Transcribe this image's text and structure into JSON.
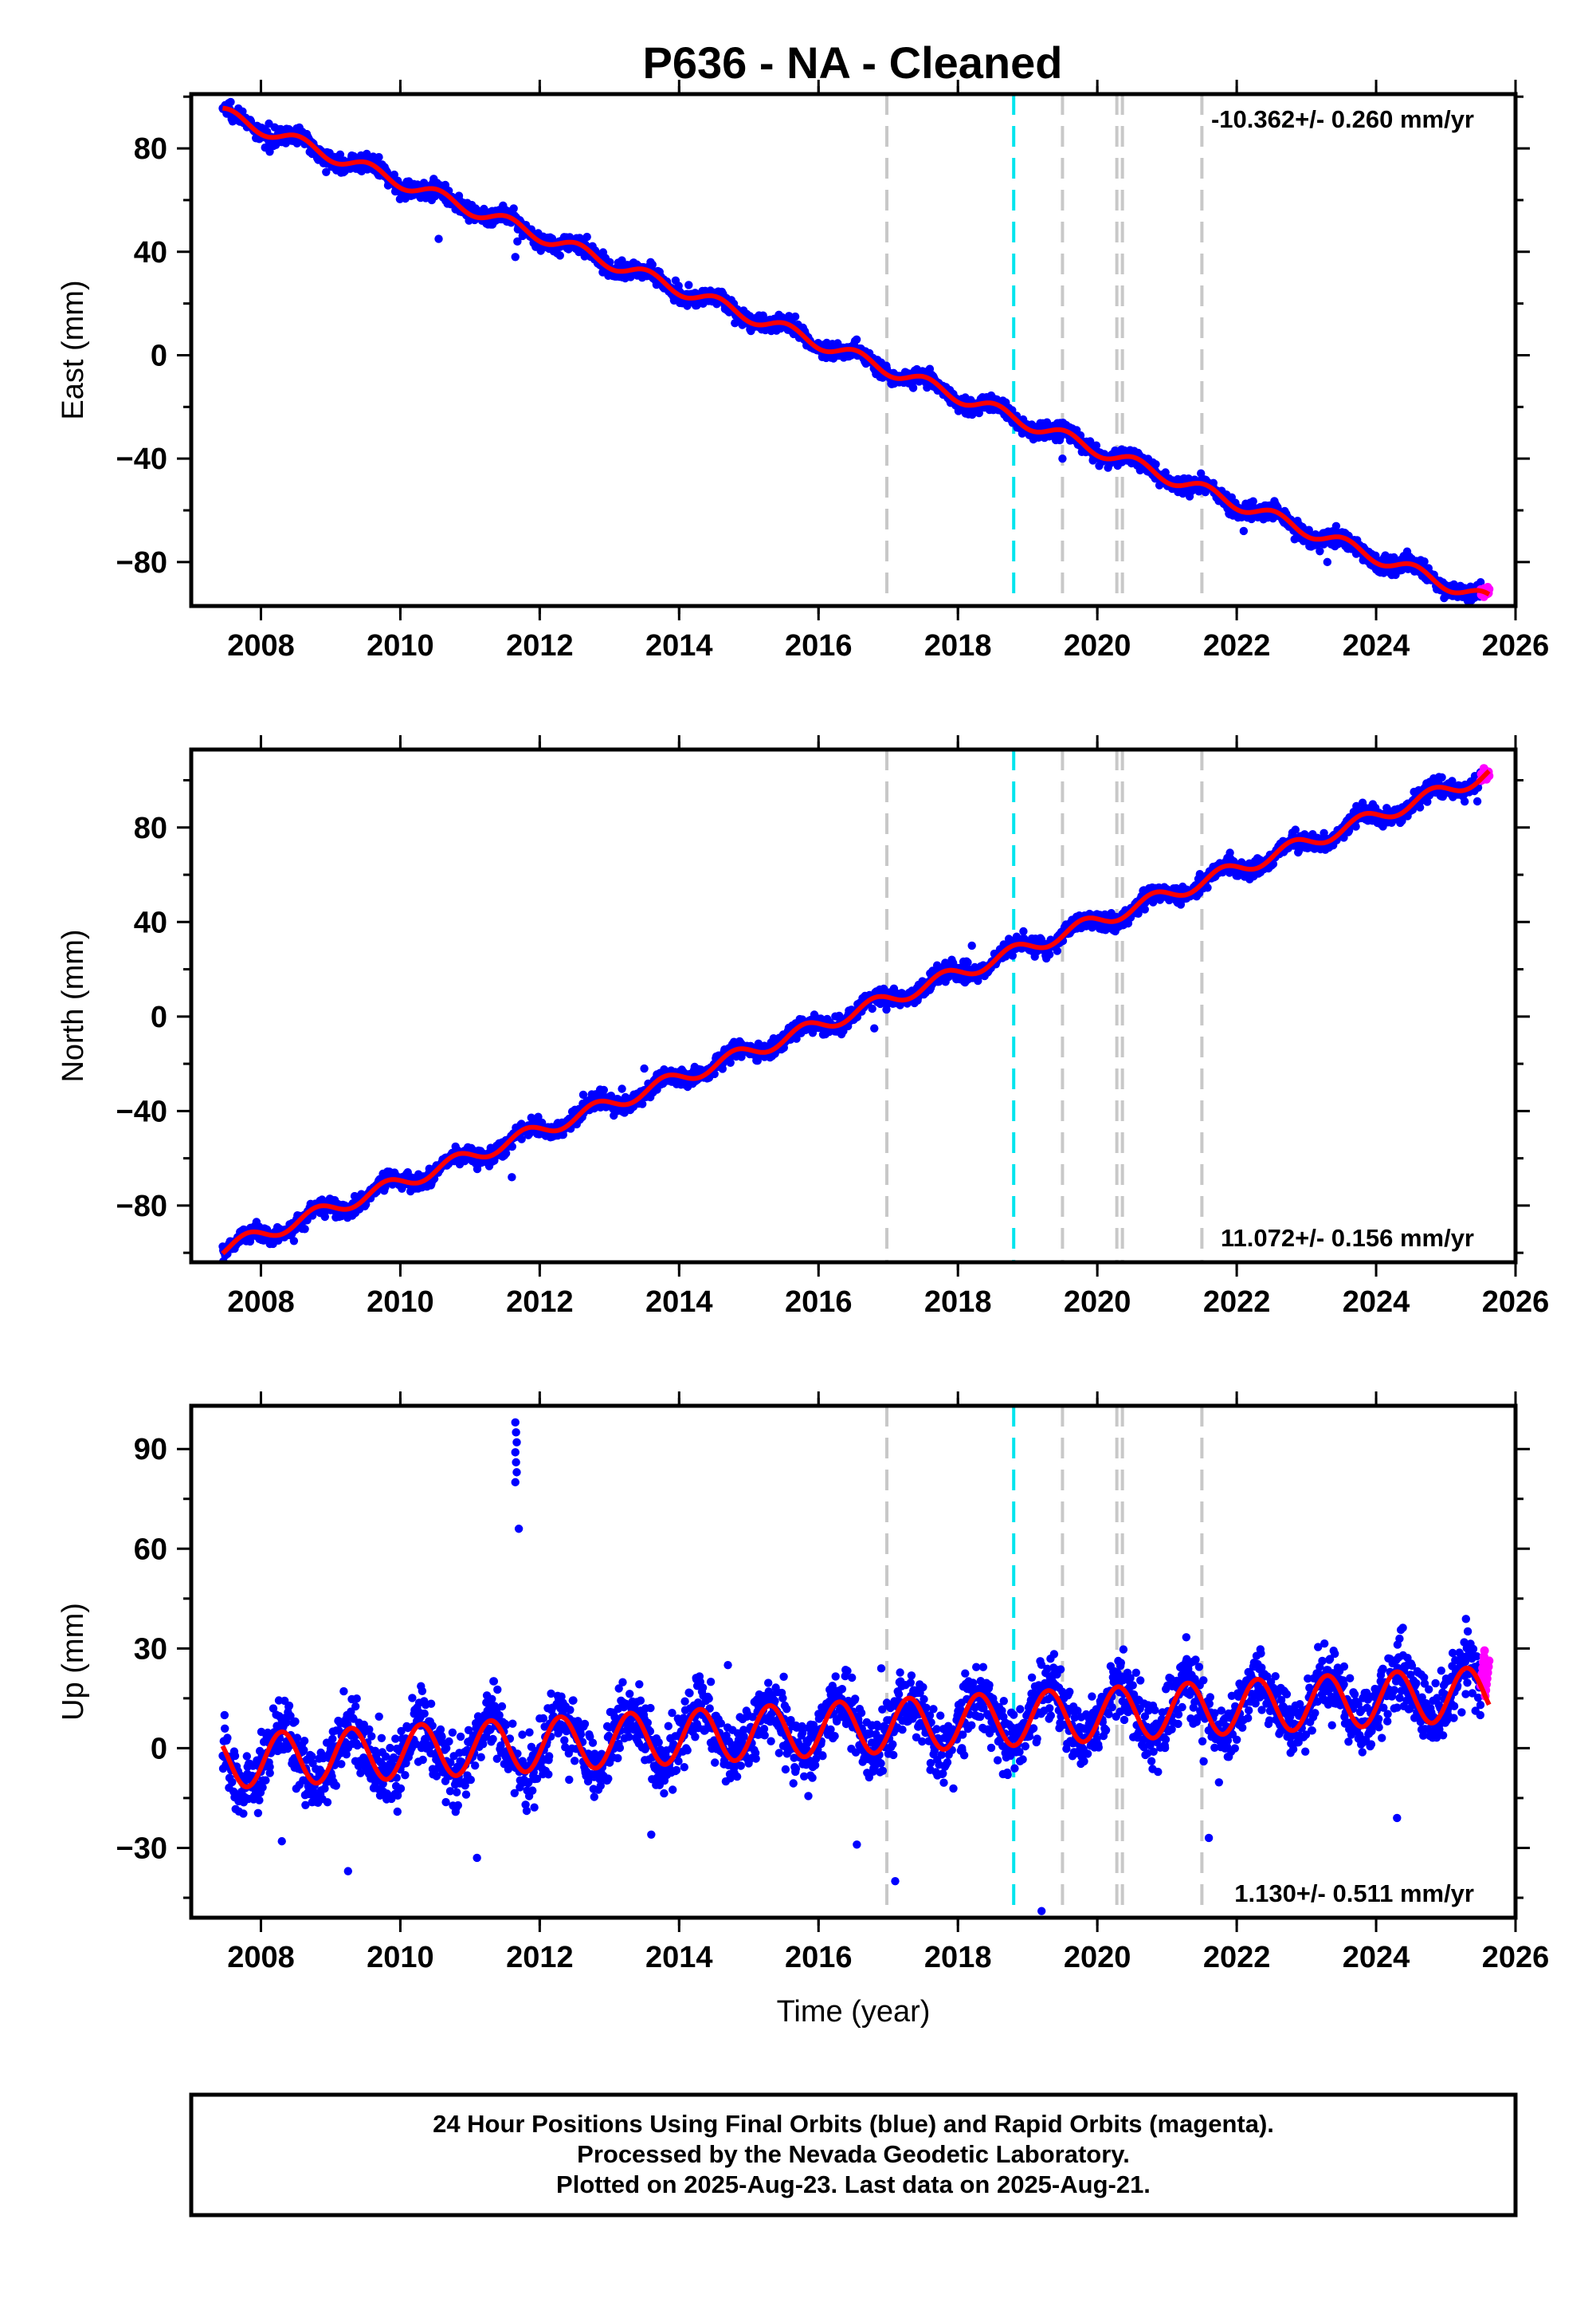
{
  "title": "P636  - NA - Cleaned",
  "colors": {
    "final_orbits": "#0000ff",
    "rapid_orbits": "#ff00ff",
    "model_fit": "#ff0000",
    "event_line": "#c8c8c8",
    "antenna_change_line": "#00e5ee"
  },
  "chart_data": [
    {
      "type": "scatter",
      "ylabel": "East (mm)",
      "xlim": [
        2007.0,
        2026.0
      ],
      "ylim": [
        -97,
        101
      ],
      "x_ticks": [
        2008,
        2010,
        2012,
        2014,
        2016,
        2018,
        2020,
        2022,
        2024,
        2026
      ],
      "y_ticks": [
        -80,
        -40,
        0,
        40,
        80
      ],
      "rate_label": "-10.362+/- 0.260 mm/yr",
      "rate_position": "top-right",
      "rate": -10.362,
      "rate_uncertainty": 0.26,
      "seasonal_amplitude": 2.5,
      "seasonal_phase": 0.3,
      "noise": 1.6,
      "y_at_2007_5": 93,
      "series": [
        {
          "role": "final_orbits",
          "x_range": [
            2007.45,
            2025.5
          ]
        },
        {
          "role": "rapid_orbits",
          "x_range": [
            2025.5,
            2025.62
          ]
        },
        {
          "role": "model_fit"
        }
      ],
      "outliers": [
        {
          "x": 2010.55,
          "y": 45
        },
        {
          "x": 2011.65,
          "y": 38
        },
        {
          "x": 2011.68,
          "y": 44
        },
        {
          "x": 2016.9,
          "y": -8
        },
        {
          "x": 2018.85,
          "y": -28
        },
        {
          "x": 2019.5,
          "y": -40
        },
        {
          "x": 2022.1,
          "y": -68
        },
        {
          "x": 2023.3,
          "y": -80
        },
        {
          "x": 2024.3,
          "y": -82
        }
      ]
    },
    {
      "type": "scatter",
      "ylabel": "North (mm)",
      "xlim": [
        2007.0,
        2026.0
      ],
      "ylim": [
        -104,
        113
      ],
      "x_ticks": [
        2008,
        2010,
        2012,
        2014,
        2016,
        2018,
        2020,
        2022,
        2024,
        2026
      ],
      "y_ticks": [
        -80,
        -40,
        0,
        40,
        80
      ],
      "rate_label": "11.072+/- 0.156 mm/yr",
      "rate_position": "bottom-right",
      "rate": 11.072,
      "rate_uncertainty": 0.156,
      "seasonal_amplitude": 3.0,
      "seasonal_phase": 0.55,
      "noise": 1.8,
      "y_at_2007_5": -98,
      "series": [
        {
          "role": "final_orbits",
          "x_range": [
            2007.45,
            2025.5
          ]
        },
        {
          "role": "rapid_orbits",
          "x_range": [
            2025.5,
            2025.62
          ]
        },
        {
          "role": "model_fit"
        }
      ],
      "outliers": [
        {
          "x": 2011.6,
          "y": -68
        },
        {
          "x": 2013.5,
          "y": -22
        },
        {
          "x": 2016.8,
          "y": -5
        },
        {
          "x": 2018.2,
          "y": 30
        },
        {
          "x": 2021.3,
          "y": 52
        }
      ]
    },
    {
      "type": "scatter",
      "ylabel": "Up (mm)",
      "xlabel": "Time (year)",
      "xlim": [
        2007.0,
        2026.0
      ],
      "ylim": [
        -51,
        103
      ],
      "x_ticks": [
        2008,
        2010,
        2012,
        2014,
        2016,
        2018,
        2020,
        2022,
        2024,
        2026
      ],
      "y_ticks": [
        -30,
        0,
        30,
        60,
        90
      ],
      "rate_label": "1.130+/- 0.511 mm/yr",
      "rate_position": "bottom-right",
      "rate": 1.13,
      "rate_uncertainty": 0.511,
      "seasonal_amplitude": 8.0,
      "seasonal_phase": 0.05,
      "noise": 5.0,
      "y_at_2007_5": -4,
      "series": [
        {
          "role": "final_orbits",
          "x_range": [
            2007.45,
            2025.5
          ]
        },
        {
          "role": "rapid_orbits",
          "x_range": [
            2025.5,
            2025.62
          ]
        },
        {
          "role": "model_fit"
        }
      ],
      "outliers": [
        {
          "x": 2011.65,
          "y": 98
        },
        {
          "x": 2011.66,
          "y": 95
        },
        {
          "x": 2011.67,
          "y": 92
        },
        {
          "x": 2011.65,
          "y": 89
        },
        {
          "x": 2011.66,
          "y": 86
        },
        {
          "x": 2011.67,
          "y": 83
        },
        {
          "x": 2011.65,
          "y": 80
        },
        {
          "x": 2011.7,
          "y": 66
        },
        {
          "x": 2009.25,
          "y": -37
        },
        {
          "x": 2008.3,
          "y": -28
        },
        {
          "x": 2011.1,
          "y": -33
        },
        {
          "x": 2016.55,
          "y": -29
        },
        {
          "x": 2017.1,
          "y": -40
        },
        {
          "x": 2019.2,
          "y": -49
        },
        {
          "x": 2013.6,
          "y": -26
        },
        {
          "x": 2021.6,
          "y": -27
        },
        {
          "x": 2024.3,
          "y": -21
        },
        {
          "x": 2014.7,
          "y": 25
        },
        {
          "x": 2016.9,
          "y": 24
        }
      ]
    }
  ],
  "event_lines": [
    {
      "x": 2016.98,
      "kind": "event_line"
    },
    {
      "x": 2018.8,
      "kind": "antenna_change_line"
    },
    {
      "x": 2019.5,
      "kind": "event_line"
    },
    {
      "x": 2020.28,
      "kind": "event_line"
    },
    {
      "x": 2020.36,
      "kind": "event_line"
    },
    {
      "x": 2021.5,
      "kind": "event_line"
    }
  ],
  "footer": {
    "line1": "24 Hour Positions Using Final Orbits (blue) and Rapid Orbits (magenta).",
    "line2": "Processed by the Nevada Geodetic Laboratory.",
    "line3": "Plotted on 2025-Aug-23. Last data on 2025-Aug-21."
  }
}
